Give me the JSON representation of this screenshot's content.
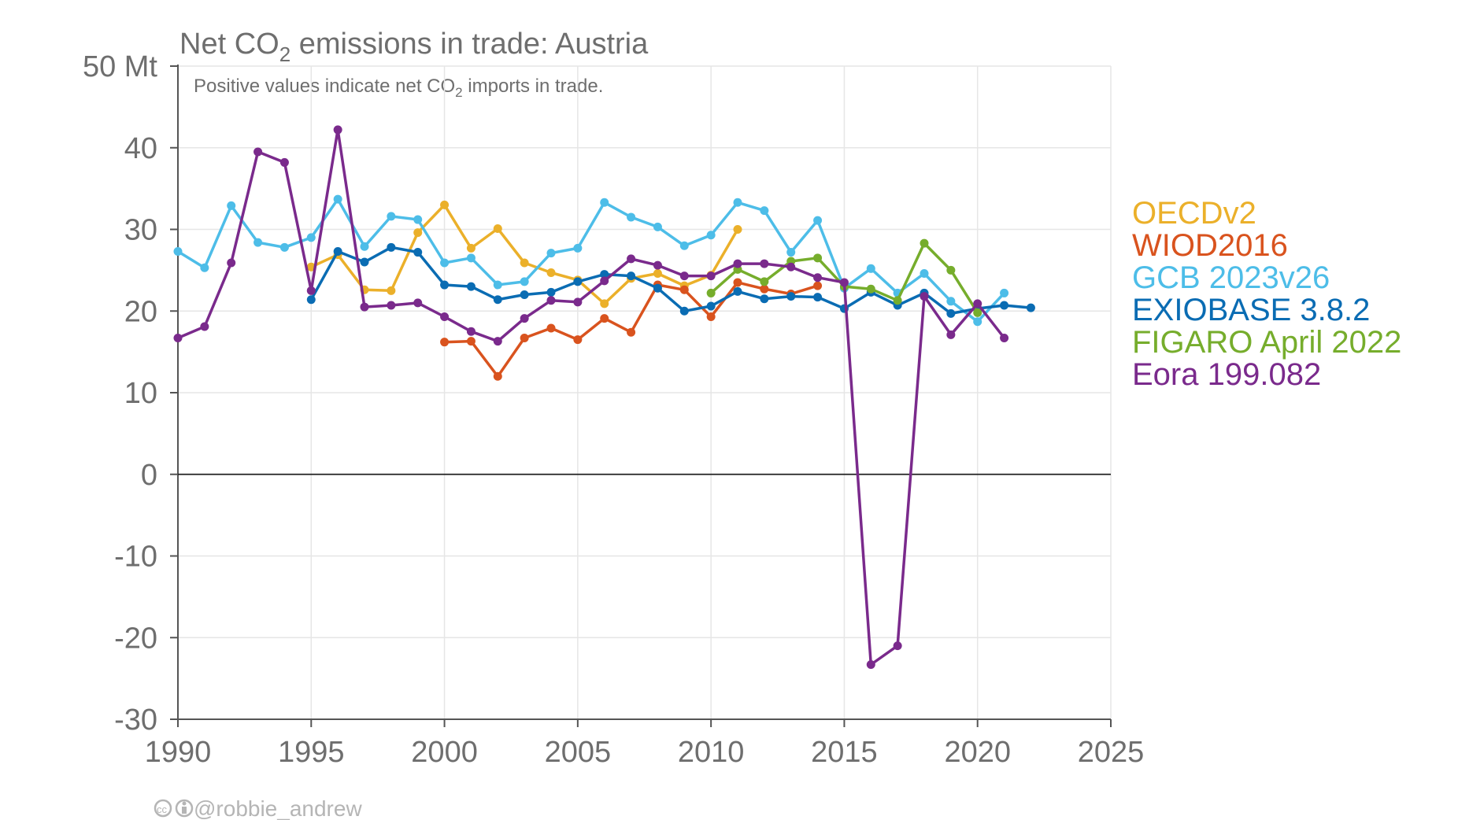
{
  "chart_data": {
    "type": "line",
    "title_main": "Net CO",
    "title_sub2": "2",
    "title_rest": " emissions in trade: Austria",
    "subtitle_main": "Positive values indicate net CO",
    "subtitle_sub2": "2",
    "subtitle_rest": " imports in trade.",
    "y_unit_label": "50 Mt",
    "xlim": [
      1990,
      2025
    ],
    "ylim": [
      -30,
      50
    ],
    "x_ticks": [
      "1990",
      "1995",
      "2000",
      "2005",
      "2010",
      "2015",
      "2020",
      "2025"
    ],
    "y_ticks": [
      "-30",
      "-20",
      "-10",
      "0",
      "10",
      "20",
      "30",
      "40"
    ],
    "grid": true,
    "legend_position": "right",
    "series": [
      {
        "name": "OECDv2",
        "color": "#ebb02a",
        "x": [
          1995,
          1996,
          1997,
          1998,
          1999,
          2000,
          2001,
          2002,
          2003,
          2004,
          2005,
          2006,
          2007,
          2008,
          2009,
          2010,
          2011
        ],
        "values": [
          25.4,
          26.9,
          22.6,
          22.5,
          29.6,
          33.0,
          27.7,
          30.1,
          25.9,
          24.7,
          23.8,
          20.9,
          24.0,
          24.6,
          23.1,
          24.4,
          30.0
        ]
      },
      {
        "name": "WIOD2016",
        "color": "#d9531e",
        "x": [
          2000,
          2001,
          2002,
          2003,
          2004,
          2005,
          2006,
          2007,
          2008,
          2009,
          2010,
          2011,
          2012,
          2013,
          2014
        ],
        "values": [
          16.2,
          16.3,
          12.0,
          16.7,
          17.9,
          16.5,
          19.1,
          17.4,
          23.2,
          22.6,
          19.3,
          23.5,
          22.7,
          22.1,
          23.1
        ]
      },
      {
        "name": "GCB 2023v26",
        "color": "#4dbde8",
        "x": [
          1990,
          1991,
          1992,
          1993,
          1994,
          1995,
          1996,
          1997,
          1998,
          1999,
          2000,
          2001,
          2002,
          2003,
          2004,
          2005,
          2006,
          2007,
          2008,
          2009,
          2010,
          2011,
          2012,
          2013,
          2014,
          2015,
          2016,
          2017,
          2018,
          2019,
          2020,
          2021
        ],
        "values": [
          27.3,
          25.3,
          32.9,
          28.4,
          27.8,
          29.0,
          33.7,
          27.9,
          31.6,
          31.2,
          25.9,
          26.5,
          23.2,
          23.6,
          27.1,
          27.7,
          33.3,
          31.5,
          30.3,
          28.0,
          29.3,
          33.3,
          32.3,
          27.2,
          31.1,
          22.8,
          25.2,
          22.2,
          24.6,
          21.2,
          18.7,
          22.2
        ]
      },
      {
        "name": "EXIOBASE 3.8.2",
        "color": "#0a6cb3",
        "x": [
          1995,
          1996,
          1997,
          1998,
          1999,
          2000,
          2001,
          2002,
          2003,
          2004,
          2005,
          2006,
          2007,
          2008,
          2009,
          2010,
          2011,
          2012,
          2013,
          2014,
          2015,
          2016,
          2017,
          2018,
          2019,
          2020,
          2021,
          2022
        ],
        "values": [
          21.4,
          27.3,
          26.0,
          27.8,
          27.2,
          23.2,
          23.0,
          21.4,
          22.0,
          22.3,
          23.6,
          24.5,
          24.3,
          22.8,
          20.0,
          20.6,
          22.4,
          21.5,
          21.8,
          21.7,
          20.3,
          22.3,
          20.7,
          22.2,
          19.7,
          20.3,
          20.7,
          20.4
        ]
      },
      {
        "name": "FIGARO April 2022",
        "color": "#76ad2c",
        "x": [
          2010,
          2011,
          2012,
          2013,
          2014,
          2015,
          2016,
          2017,
          2018,
          2019,
          2020
        ],
        "values": [
          22.2,
          25.1,
          23.6,
          26.1,
          26.5,
          23.0,
          22.7,
          21.3,
          28.3,
          25.0,
          19.8
        ]
      },
      {
        "name": "Eora 199.082",
        "color": "#7a2a8c",
        "x": [
          1990,
          1991,
          1992,
          1993,
          1994,
          1995,
          1996,
          1997,
          1998,
          1999,
          2000,
          2001,
          2002,
          2003,
          2004,
          2005,
          2006,
          2007,
          2008,
          2009,
          2010,
          2011,
          2012,
          2013,
          2014,
          2015,
          2016,
          2017,
          2018,
          2019,
          2020,
          2021
        ],
        "values": [
          16.7,
          18.1,
          25.9,
          39.5,
          38.2,
          22.5,
          42.2,
          20.5,
          20.7,
          21.0,
          19.3,
          17.5,
          16.3,
          19.1,
          21.3,
          21.1,
          23.7,
          26.4,
          25.6,
          24.3,
          24.3,
          25.8,
          25.8,
          25.4,
          24.1,
          23.5,
          -23.3,
          -21.0,
          21.8,
          17.1,
          20.9,
          16.7
        ]
      }
    ]
  },
  "credit": {
    "icons": "cc-by-icons",
    "handle": "@robbie_andrew"
  }
}
